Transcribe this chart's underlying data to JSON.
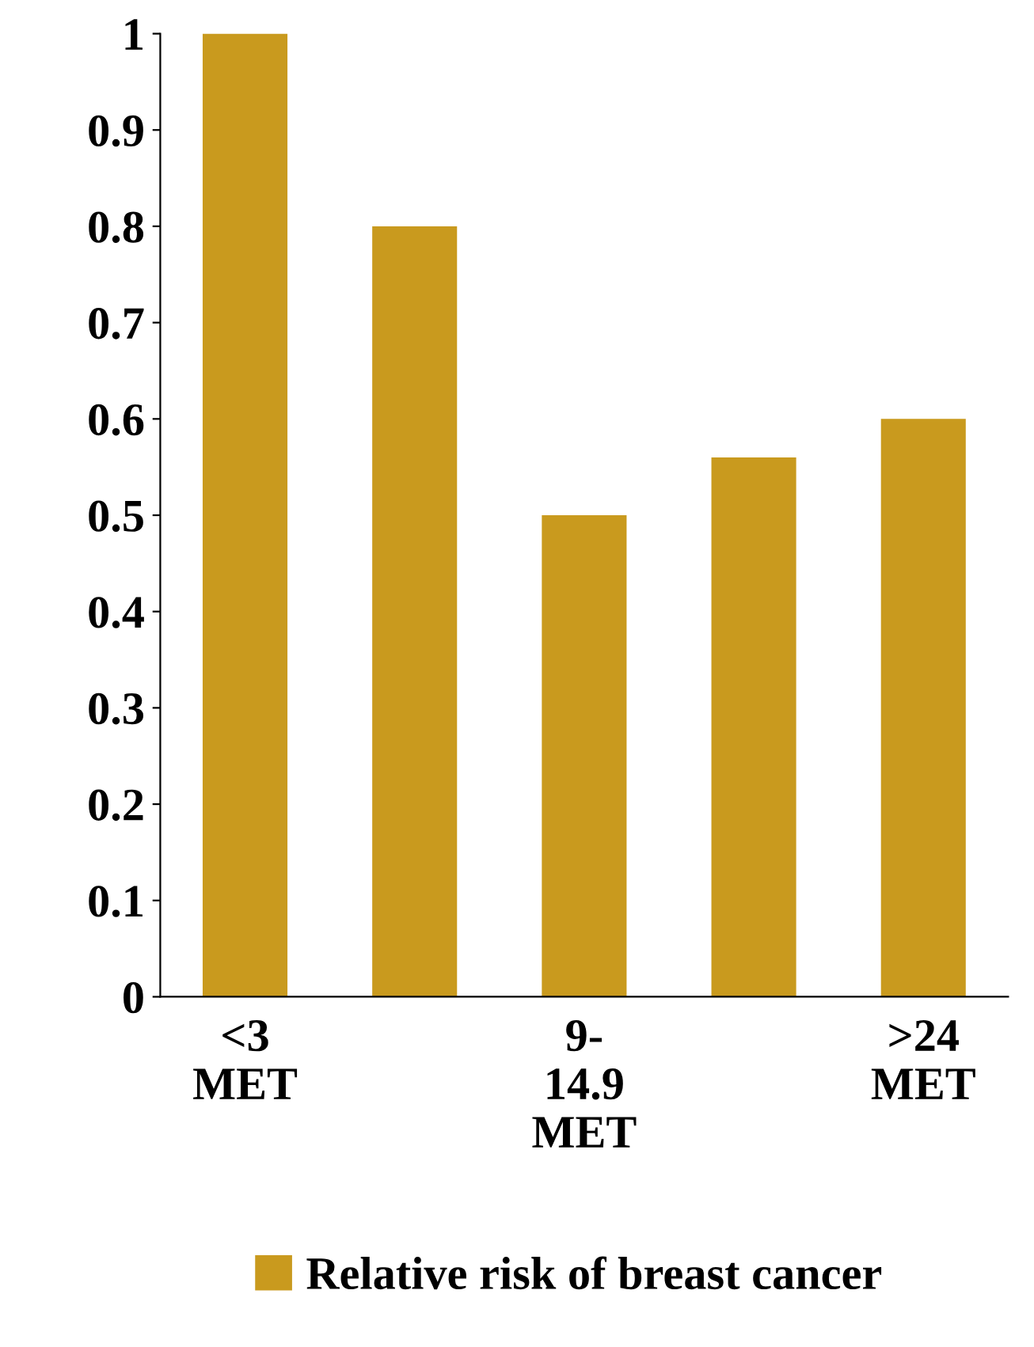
{
  "chart_data": {
    "type": "bar",
    "categories": [
      "<3\nMET",
      null,
      "9-\n14.9\nMET",
      null,
      ">24\nMET"
    ],
    "series": [
      {
        "name": "Relative risk of breast cancer",
        "color": "#c99a1e",
        "values": [
          1.0,
          0.8,
          0.5,
          0.56,
          0.6
        ]
      }
    ],
    "ylim": [
      0,
      1
    ],
    "yticks": [
      0,
      0.1,
      0.2,
      0.3,
      0.4,
      0.5,
      0.6,
      0.7,
      0.8,
      0.9,
      1
    ],
    "grid": false,
    "legend": "bottom"
  }
}
